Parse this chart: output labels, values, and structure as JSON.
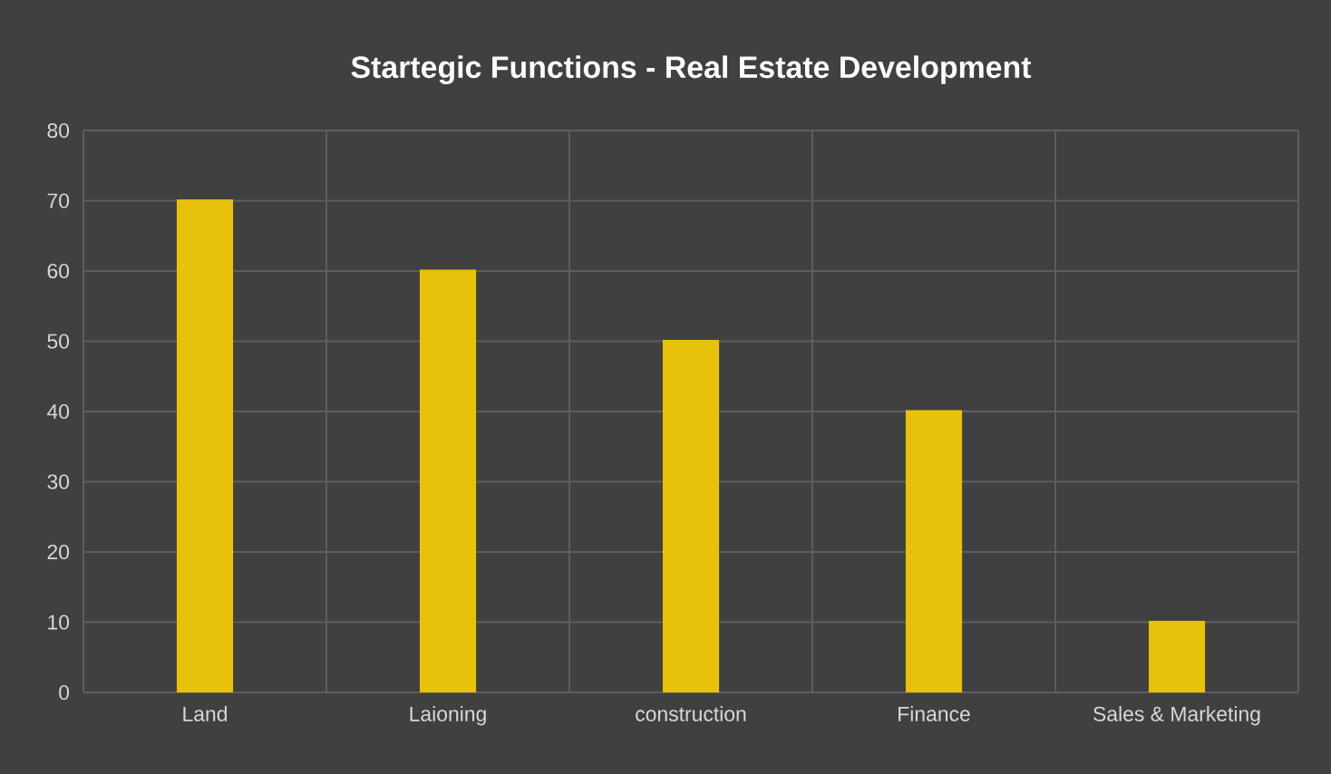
{
  "chart_data": {
    "type": "bar",
    "title": "Startegic Functions - Real Estate Development",
    "categories": [
      "Land",
      "Laioning",
      "construction",
      "Finance",
      "Sales & Marketing"
    ],
    "values": [
      70,
      60,
      50,
      40,
      10
    ],
    "color": "#e8c10a",
    "ylim": [
      0,
      80
    ],
    "yticks": [
      0,
      10,
      20,
      30,
      40,
      50,
      60,
      70,
      80
    ],
    "grid": true
  }
}
